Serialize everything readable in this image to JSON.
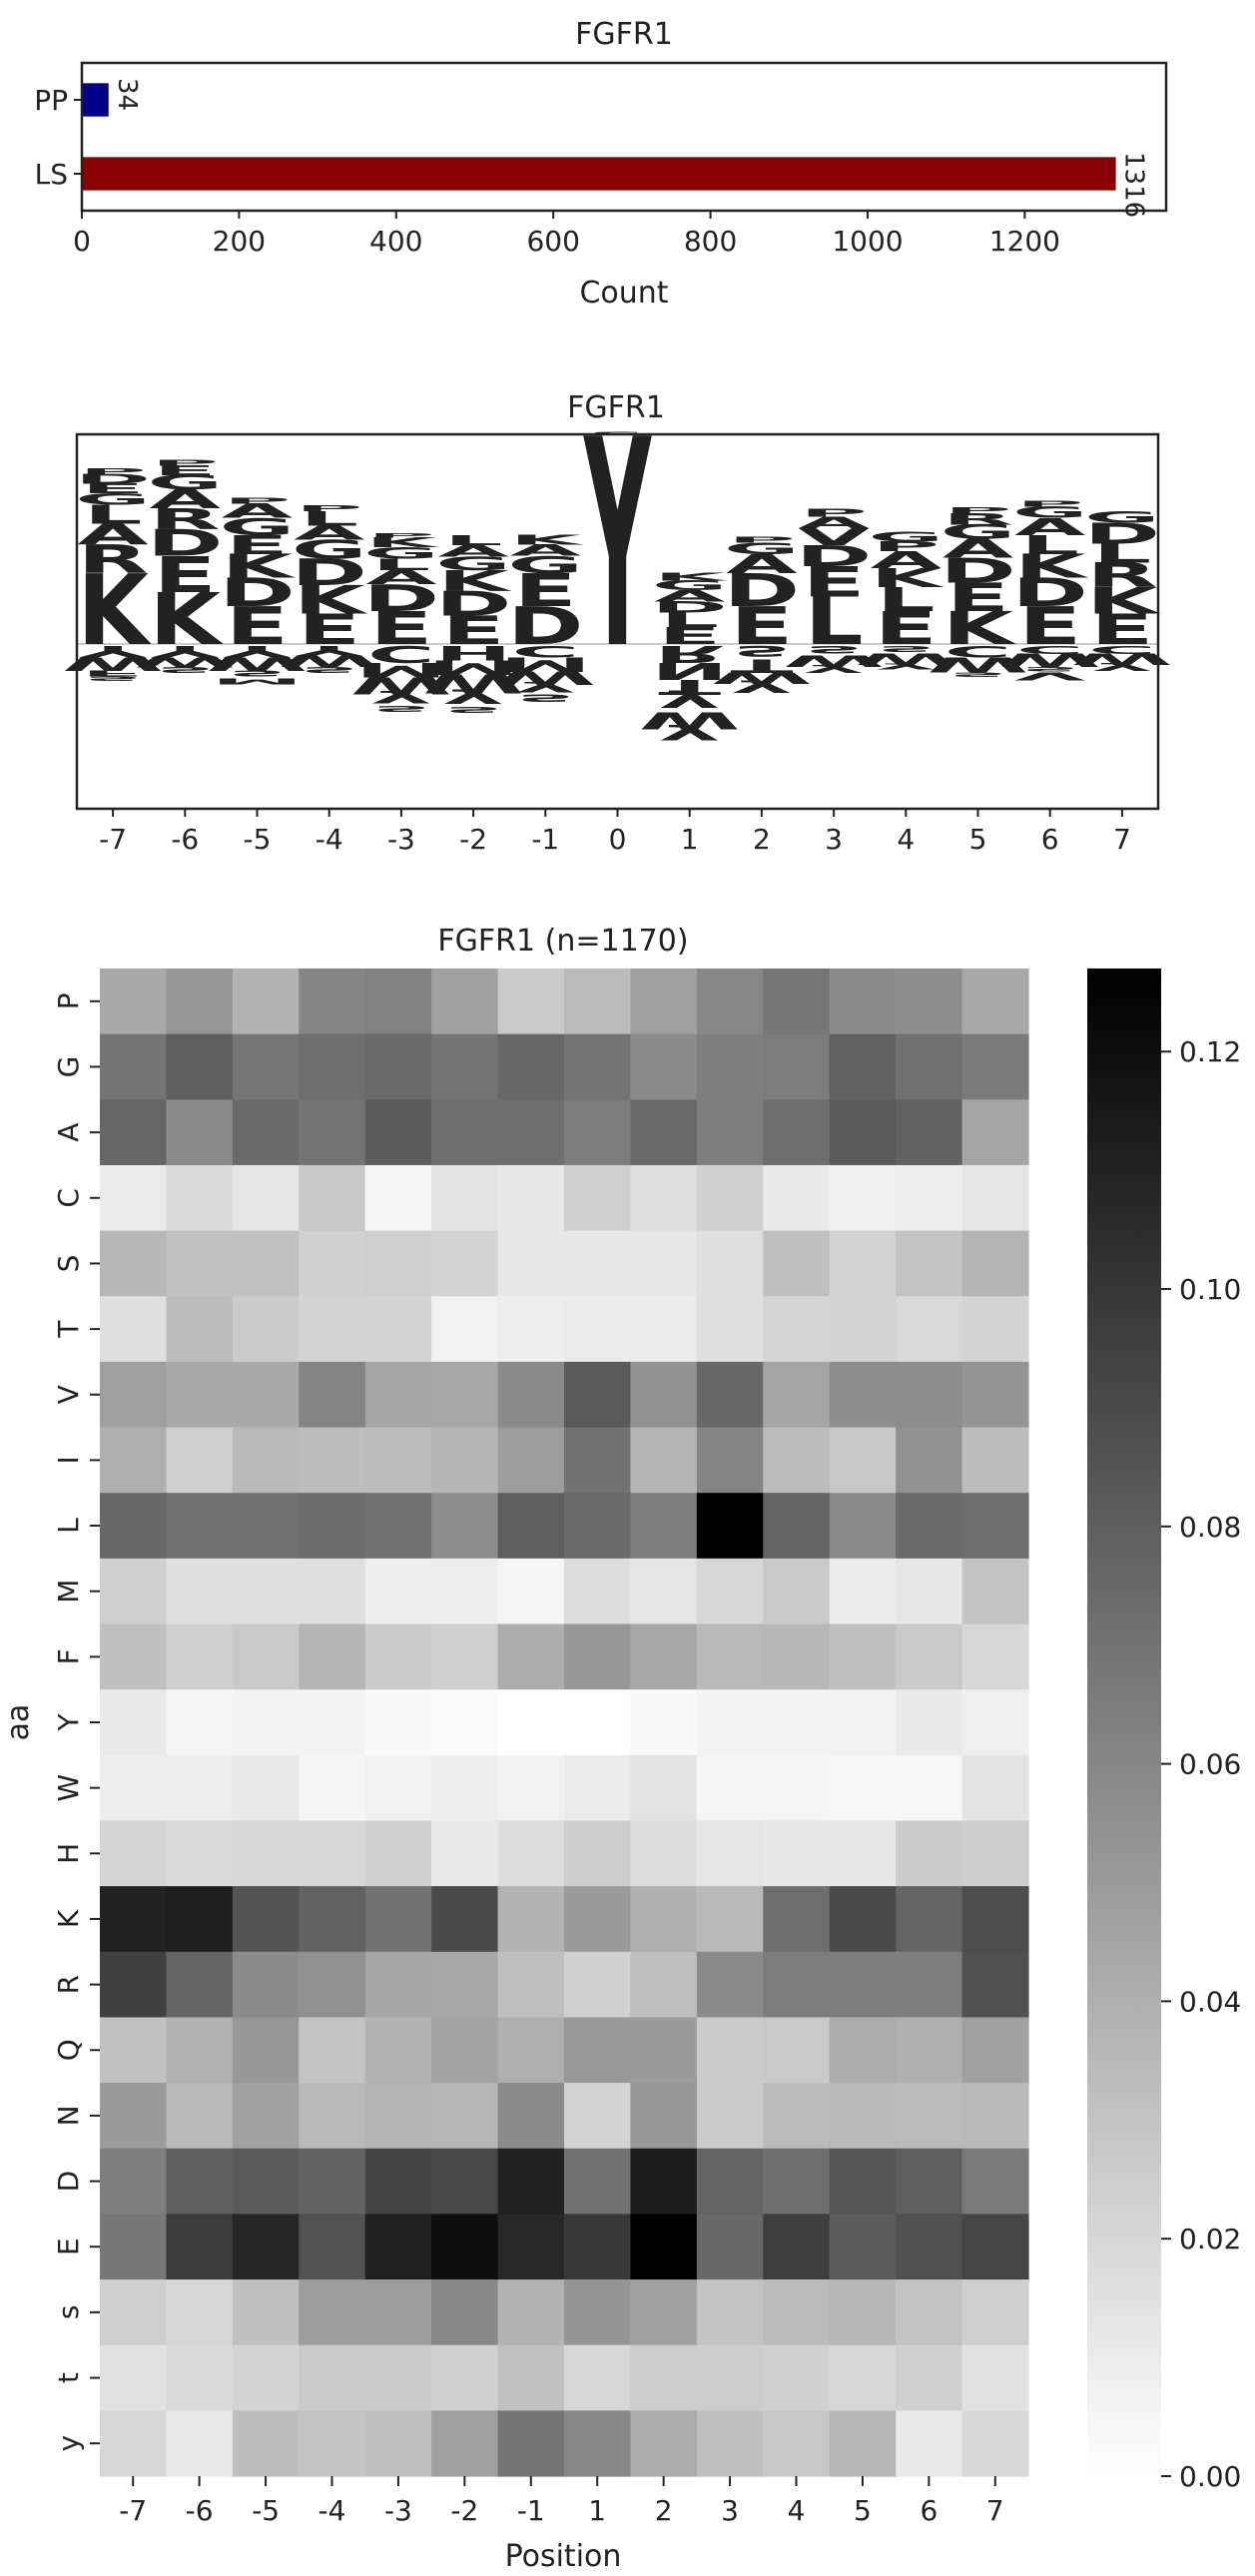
{
  "charts": {
    "bar": {
      "type": "bar",
      "orientation": "horizontal",
      "title": "FGFR1",
      "xlabel": "Count",
      "categories": [
        "PP",
        "LS"
      ],
      "values": [
        34,
        1316
      ],
      "value_labels": [
        "34",
        "1316"
      ],
      "colors": [
        "#00008b",
        "#8b0000"
      ],
      "xlim": [
        0,
        1380
      ],
      "xticks": [
        0,
        200,
        400,
        600,
        800,
        1000,
        1200
      ]
    },
    "logo": {
      "type": "sequence-logo",
      "title": "FGFR1",
      "positions": [
        "-7",
        "-6",
        "-5",
        "-4",
        "-3",
        "-2",
        "-1",
        "0",
        "1",
        "2",
        "3",
        "4",
        "5",
        "6",
        "7"
      ],
      "letter_colors": {
        "K": "#0000ff",
        "R": "#0000ff",
        "H": "#0000ff",
        "D": "#dc143c",
        "E": "#dc143c",
        "G": "#008000",
        "S": "#008000",
        "T": "#008000",
        "Y": "#008000",
        "C": "#008000",
        "P": "#000000",
        "A": "#daa520",
        "V": "#daa520",
        "L": "#daa520",
        "I": "#daa520",
        "M": "#daa520",
        "F": "#daa520",
        "W": "#daa520",
        "N": "#800080",
        "Q": "#800080",
        "s": "#800080",
        "t": "#800080",
        "y": "#8b4513"
      },
      "above": [
        [
          [
            "K",
            0.75
          ],
          [
            "R",
            0.3
          ],
          [
            "A",
            0.22
          ],
          [
            "L",
            0.2
          ],
          [
            "G",
            0.12
          ],
          [
            "E",
            0.1
          ],
          [
            "D",
            0.1
          ],
          [
            "P",
            0.06
          ]
        ],
        [
          [
            "K",
            0.55
          ],
          [
            "E",
            0.38
          ],
          [
            "D",
            0.28
          ],
          [
            "R",
            0.22
          ],
          [
            "A",
            0.2
          ],
          [
            "G",
            0.15
          ],
          [
            "E",
            0.1
          ],
          [
            "P",
            0.06
          ]
        ],
        [
          [
            "E",
            0.4
          ],
          [
            "D",
            0.3
          ],
          [
            "K",
            0.25
          ],
          [
            "E",
            0.2
          ],
          [
            "G",
            0.18
          ],
          [
            "A",
            0.15
          ],
          [
            "P",
            0.06
          ]
        ],
        [
          [
            "E",
            0.32
          ],
          [
            "K",
            0.3
          ],
          [
            "D",
            0.28
          ],
          [
            "G",
            0.2
          ],
          [
            "A",
            0.15
          ],
          [
            "L",
            0.15
          ],
          [
            "P",
            0.06
          ]
        ],
        [
          [
            "E",
            0.35
          ],
          [
            "D",
            0.28
          ],
          [
            "A",
            0.15
          ],
          [
            "L",
            0.12
          ],
          [
            "G",
            0.12
          ],
          [
            "K",
            0.1
          ],
          [
            "P",
            0.05
          ]
        ],
        [
          [
            "E",
            0.3
          ],
          [
            "D",
            0.26
          ],
          [
            "K",
            0.22
          ],
          [
            "G",
            0.14
          ],
          [
            "A",
            0.12
          ],
          [
            "L",
            0.1
          ]
        ],
        [
          [
            "D",
            0.4
          ],
          [
            "E",
            0.35
          ],
          [
            "G",
            0.18
          ],
          [
            "A",
            0.12
          ],
          [
            "K",
            0.1
          ]
        ],
        [
          [
            "Y",
            2.2
          ],
          [
            "s",
            0.05
          ]
        ],
        [
          [
            "E",
            0.18
          ],
          [
            "L",
            0.15
          ],
          [
            "D",
            0.12
          ],
          [
            "A",
            0.12
          ],
          [
            "G",
            0.1
          ],
          [
            "K",
            0.08
          ]
        ],
        [
          [
            "E",
            0.4
          ],
          [
            "D",
            0.35
          ],
          [
            "A",
            0.2
          ],
          [
            "G",
            0.12
          ],
          [
            "P",
            0.06
          ]
        ],
        [
          [
            "L",
            0.5
          ],
          [
            "E",
            0.32
          ],
          [
            "D",
            0.22
          ],
          [
            "V",
            0.18
          ],
          [
            "A",
            0.12
          ],
          [
            "P",
            0.08
          ]
        ],
        [
          [
            "E",
            0.35
          ],
          [
            "L",
            0.25
          ],
          [
            "K",
            0.2
          ],
          [
            "A",
            0.18
          ],
          [
            "P",
            0.1
          ],
          [
            "G",
            0.1
          ]
        ],
        [
          [
            "K",
            0.35
          ],
          [
            "E",
            0.3
          ],
          [
            "D",
            0.26
          ],
          [
            "A",
            0.2
          ],
          [
            "G",
            0.15
          ],
          [
            "R",
            0.12
          ],
          [
            "P",
            0.06
          ]
        ],
        [
          [
            "E",
            0.4
          ],
          [
            "D",
            0.3
          ],
          [
            "K",
            0.25
          ],
          [
            "L",
            0.2
          ],
          [
            "A",
            0.18
          ],
          [
            "G",
            0.12
          ],
          [
            "P",
            0.06
          ]
        ],
        [
          [
            "E",
            0.32
          ],
          [
            "K",
            0.28
          ],
          [
            "R",
            0.26
          ],
          [
            "L",
            0.2
          ],
          [
            "D",
            0.22
          ],
          [
            "G",
            0.12
          ]
        ]
      ],
      "below": [
        [
          [
            "Y",
            0.12
          ],
          [
            "W",
            0.14
          ],
          [
            "F",
            0.06
          ],
          [
            "s",
            0.06
          ]
        ],
        [
          [
            "Y",
            0.12
          ],
          [
            "W",
            0.1
          ],
          [
            "s",
            0.08
          ]
        ],
        [
          [
            "Y",
            0.12
          ],
          [
            "W",
            0.14
          ],
          [
            "s",
            0.08
          ],
          [
            "M",
            0.06
          ]
        ],
        [
          [
            "Y",
            0.1
          ],
          [
            "W",
            0.12
          ],
          [
            "s",
            0.08
          ]
        ],
        [
          [
            "C",
            0.18
          ],
          [
            "M",
            0.15
          ],
          [
            "W",
            0.18
          ],
          [
            "y",
            0.12
          ],
          [
            "s",
            0.08
          ]
        ],
        [
          [
            "H",
            0.15
          ],
          [
            "M",
            0.15
          ],
          [
            "W",
            0.2
          ],
          [
            "y",
            0.14
          ],
          [
            "s",
            0.08
          ]
        ],
        [
          [
            "C",
            0.12
          ],
          [
            "M",
            0.15
          ],
          [
            "W",
            0.14
          ],
          [
            "y",
            0.1
          ],
          [
            "s",
            0.1
          ]
        ],
        [],
        [
          [
            "R",
            0.18
          ],
          [
            "N",
            0.18
          ],
          [
            "T",
            0.16
          ],
          [
            "y",
            0.18
          ],
          [
            "W",
            0.18
          ],
          [
            "y",
            0.16
          ]
        ],
        [
          [
            "s",
            0.14
          ],
          [
            "T",
            0.14
          ],
          [
            "W",
            0.12
          ],
          [
            "y",
            0.12
          ]
        ],
        [
          [
            "s",
            0.1
          ],
          [
            "W",
            0.12
          ],
          [
            "y",
            0.08
          ]
        ],
        [
          [
            "s",
            0.08
          ],
          [
            "W",
            0.12
          ],
          [
            "y",
            0.06
          ]
        ],
        [
          [
            "C",
            0.12
          ],
          [
            "W",
            0.16
          ],
          [
            "s",
            0.06
          ]
        ],
        [
          [
            "C",
            0.08
          ],
          [
            "W",
            0.14
          ],
          [
            "s",
            0.06
          ],
          [
            "V",
            0.08
          ]
        ],
        [
          [
            "C",
            0.08
          ],
          [
            "W",
            0.12
          ],
          [
            "y",
            0.08
          ]
        ]
      ]
    },
    "heatmap": {
      "type": "heatmap",
      "title": "FGFR1 (n=1170)",
      "xlabel": "Position",
      "ylabel": "aa",
      "columns": [
        "-7",
        "-6",
        "-5",
        "-4",
        "-3",
        "-2",
        "-1",
        "1",
        "2",
        "3",
        "4",
        "5",
        "6",
        "7"
      ],
      "rows": [
        "P",
        "G",
        "A",
        "C",
        "S",
        "T",
        "V",
        "I",
        "L",
        "M",
        "F",
        "Y",
        "W",
        "H",
        "K",
        "R",
        "Q",
        "N",
        "D",
        "E",
        "s",
        "t",
        "y"
      ],
      "values": [
        [
          0.043,
          0.052,
          0.038,
          0.061,
          0.063,
          0.047,
          0.027,
          0.034,
          0.048,
          0.06,
          0.068,
          0.058,
          0.057,
          0.043
        ],
        [
          0.069,
          0.08,
          0.068,
          0.072,
          0.074,
          0.069,
          0.075,
          0.069,
          0.058,
          0.064,
          0.065,
          0.079,
          0.071,
          0.066
        ],
        [
          0.076,
          0.058,
          0.074,
          0.069,
          0.081,
          0.072,
          0.072,
          0.065,
          0.074,
          0.064,
          0.072,
          0.082,
          0.078,
          0.045
        ],
        [
          0.01,
          0.018,
          0.013,
          0.028,
          0.005,
          0.014,
          0.012,
          0.024,
          0.016,
          0.023,
          0.011,
          0.008,
          0.009,
          0.013
        ],
        [
          0.036,
          0.031,
          0.031,
          0.023,
          0.024,
          0.022,
          0.012,
          0.012,
          0.012,
          0.016,
          0.032,
          0.022,
          0.03,
          0.037
        ],
        [
          0.016,
          0.033,
          0.026,
          0.022,
          0.022,
          0.007,
          0.009,
          0.01,
          0.01,
          0.016,
          0.021,
          0.022,
          0.019,
          0.022
        ],
        [
          0.048,
          0.043,
          0.043,
          0.062,
          0.045,
          0.044,
          0.058,
          0.082,
          0.055,
          0.075,
          0.045,
          0.057,
          0.057,
          0.053
        ],
        [
          0.04,
          0.024,
          0.035,
          0.033,
          0.034,
          0.037,
          0.049,
          0.07,
          0.037,
          0.061,
          0.034,
          0.028,
          0.055,
          0.033
        ],
        [
          0.075,
          0.07,
          0.07,
          0.073,
          0.07,
          0.057,
          0.08,
          0.074,
          0.065,
          0.127,
          0.077,
          0.059,
          0.074,
          0.072
        ],
        [
          0.024,
          0.016,
          0.016,
          0.016,
          0.009,
          0.009,
          0.005,
          0.017,
          0.013,
          0.02,
          0.027,
          0.01,
          0.012,
          0.03
        ],
        [
          0.032,
          0.024,
          0.027,
          0.037,
          0.026,
          0.024,
          0.041,
          0.052,
          0.044,
          0.035,
          0.036,
          0.032,
          0.027,
          0.02
        ],
        [
          0.011,
          0.005,
          0.006,
          0.006,
          0.003,
          0.002,
          0.0,
          0.0,
          0.003,
          0.006,
          0.006,
          0.006,
          0.011,
          0.008
        ],
        [
          0.009,
          0.009,
          0.011,
          0.005,
          0.007,
          0.009,
          0.007,
          0.01,
          0.014,
          0.005,
          0.005,
          0.004,
          0.004,
          0.014
        ],
        [
          0.021,
          0.018,
          0.02,
          0.02,
          0.023,
          0.011,
          0.017,
          0.025,
          0.017,
          0.013,
          0.012,
          0.012,
          0.026,
          0.025
        ],
        [
          0.11,
          0.112,
          0.085,
          0.078,
          0.07,
          0.09,
          0.038,
          0.05,
          0.04,
          0.035,
          0.072,
          0.09,
          0.077,
          0.088
        ],
        [
          0.095,
          0.077,
          0.058,
          0.055,
          0.045,
          0.044,
          0.032,
          0.023,
          0.032,
          0.058,
          0.065,
          0.065,
          0.064,
          0.087
        ],
        [
          0.031,
          0.039,
          0.052,
          0.03,
          0.038,
          0.046,
          0.04,
          0.051,
          0.05,
          0.026,
          0.027,
          0.042,
          0.04,
          0.047
        ],
        [
          0.05,
          0.035,
          0.047,
          0.035,
          0.037,
          0.036,
          0.058,
          0.022,
          0.052,
          0.026,
          0.034,
          0.035,
          0.034,
          0.035
        ],
        [
          0.064,
          0.08,
          0.082,
          0.078,
          0.093,
          0.091,
          0.11,
          0.07,
          0.113,
          0.077,
          0.072,
          0.084,
          0.08,
          0.066
        ],
        [
          0.067,
          0.097,
          0.108,
          0.086,
          0.111,
          0.12,
          0.107,
          0.099,
          0.127,
          0.075,
          0.096,
          0.081,
          0.087,
          0.092
        ],
        [
          0.024,
          0.02,
          0.032,
          0.049,
          0.049,
          0.06,
          0.038,
          0.053,
          0.047,
          0.03,
          0.034,
          0.036,
          0.03,
          0.024
        ],
        [
          0.015,
          0.019,
          0.022,
          0.027,
          0.027,
          0.023,
          0.031,
          0.02,
          0.025,
          0.025,
          0.023,
          0.02,
          0.024,
          0.015
        ],
        [
          0.02,
          0.011,
          0.033,
          0.03,
          0.032,
          0.048,
          0.069,
          0.06,
          0.042,
          0.032,
          0.028,
          0.036,
          0.011,
          0.02
        ]
      ],
      "vmin": 0,
      "vmax": 0.127,
      "colorbar_ticks": [
        "0.00",
        "0.02",
        "0.04",
        "0.06",
        "0.08",
        "0.10",
        "0.12"
      ],
      "colorbar_tick_values": [
        0,
        0.02,
        0.04,
        0.06,
        0.08,
        0.1,
        0.12
      ]
    }
  }
}
